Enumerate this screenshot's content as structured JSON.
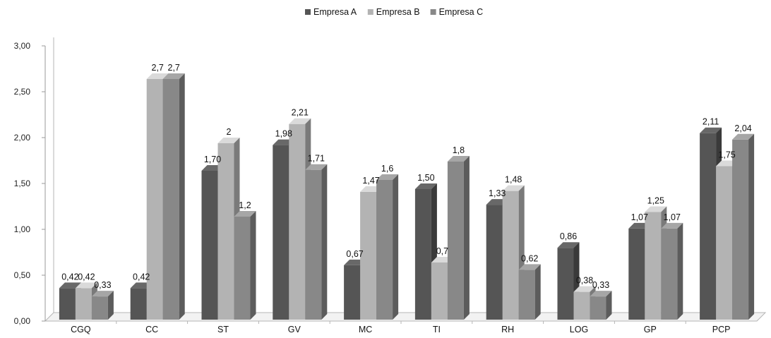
{
  "chart_data": {
    "type": "bar",
    "style": "3d-clustered",
    "categories": [
      "CGQ",
      "CC",
      "ST",
      "GV",
      "MC",
      "TI",
      "RH",
      "LOG",
      "GP",
      "PCP"
    ],
    "series": [
      {
        "name": "Empresa A",
        "color": "#555555",
        "values": [
          0.42,
          0.42,
          1.7,
          1.98,
          0.67,
          1.5,
          1.33,
          0.86,
          1.07,
          2.11
        ],
        "labels": [
          "0,42",
          "0,42",
          "1,70",
          "1,98",
          "0,67",
          "1,50",
          "1,33",
          "0,86",
          "1,07",
          "2,11"
        ]
      },
      {
        "name": "Empresa B",
        "color": "#b3b3b3",
        "values": [
          0.42,
          2.7,
          2,
          2.21,
          1.47,
          0.7,
          1.48,
          0.38,
          1.25,
          1.75
        ],
        "labels": [
          "0,42",
          "2,7",
          "2",
          "2,21",
          "1,47",
          "0,7",
          "1,48",
          "0,38",
          "1,25",
          "1,75"
        ]
      },
      {
        "name": "Empresa C",
        "color": "#888888",
        "values": [
          0.33,
          2.7,
          1.2,
          1.71,
          1.6,
          1.8,
          0.62,
          0.33,
          1.07,
          2.04
        ],
        "labels": [
          "0,33",
          "2,7",
          "1,2",
          "1,71",
          "1,6",
          "1,8",
          "0,62",
          "0,33",
          "1,07",
          "2,04"
        ]
      }
    ],
    "y_ticks": [
      "0,00",
      "0,50",
      "1,00",
      "1,50",
      "2,00",
      "2,50",
      "3,00"
    ],
    "ylim": [
      0,
      3
    ],
    "grid": false,
    "legend_position": "top-center"
  }
}
